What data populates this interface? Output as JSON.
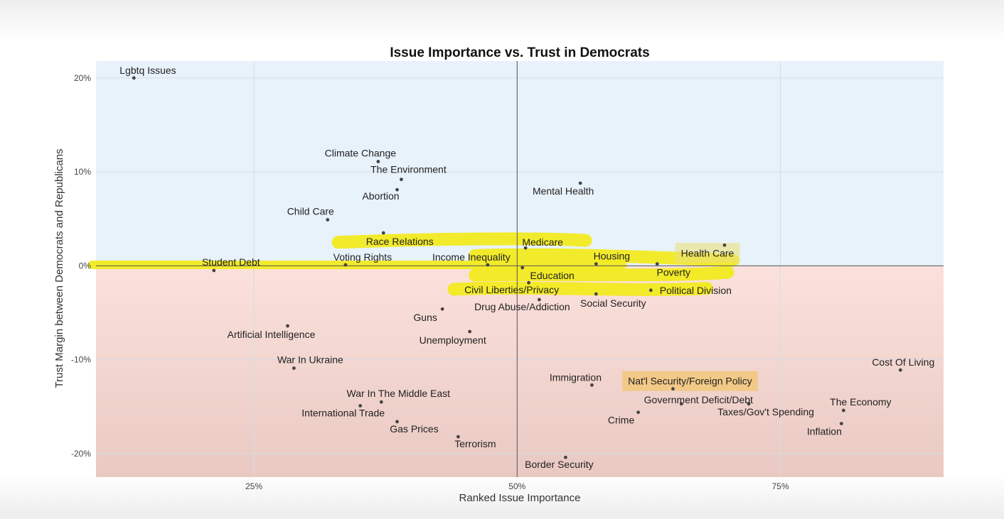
{
  "chart_data": {
    "type": "scatter",
    "title": "Issue Importance vs. Trust in Democrats",
    "xlabel": "Ranked Issue Importance",
    "ylabel": "Trust Margin between Democrats and Republicans",
    "xlim": [
      0.1,
      0.905
    ],
    "ylim": [
      -0.225,
      0.218
    ],
    "x_ticks": [
      0.25,
      0.5,
      0.75
    ],
    "x_tick_labels": [
      "25%",
      "50%",
      "75%"
    ],
    "y_ticks": [
      0.2,
      0.1,
      0.0,
      -0.1,
      -0.2
    ],
    "y_tick_labels": [
      "20%",
      "10%",
      "0%",
      "-10%",
      "-20%"
    ],
    "grid": true,
    "reference_lines": {
      "x": 0.5,
      "y": 0.0
    },
    "region_colors": {
      "positive": "#e8f2fb",
      "negative": "#fbe1dc",
      "negative_bottom": "#e9c9c2"
    },
    "point_color": "#444444",
    "highlight_color": "#f2ea1a",
    "highlight_box_color": "#f2c77a",
    "points": [
      {
        "label": "Lgbtq Issues",
        "x": 0.136,
        "y": 0.2
      },
      {
        "label": "Climate Change",
        "x": 0.368,
        "y": 0.111
      },
      {
        "label": "The Environment",
        "x": 0.39,
        "y": 0.092
      },
      {
        "label": "Abortion",
        "x": 0.386,
        "y": 0.081
      },
      {
        "label": "Mental Health",
        "x": 0.56,
        "y": 0.088
      },
      {
        "label": "Child Care",
        "x": 0.32,
        "y": 0.049
      },
      {
        "label": "Race Relations",
        "x": 0.373,
        "y": 0.035
      },
      {
        "label": "Medicare",
        "x": 0.508,
        "y": 0.019
      },
      {
        "label": "Health Care",
        "x": 0.697,
        "y": 0.022
      },
      {
        "label": "Student Debt",
        "x": 0.212,
        "y": -0.005
      },
      {
        "label": "Voting Rights",
        "x": 0.337,
        "y": 0.001
      },
      {
        "label": "Income Inequality",
        "x": 0.472,
        "y": 0.001
      },
      {
        "label": "Housing",
        "x": 0.575,
        "y": 0.002
      },
      {
        "label": "Education",
        "x": 0.505,
        "y": -0.002
      },
      {
        "label": "Poverty",
        "x": 0.633,
        "y": 0.002
      },
      {
        "label": "Civil Liberties/Privacy",
        "x": 0.511,
        "y": -0.018
      },
      {
        "label": "Political Division",
        "x": 0.627,
        "y": -0.026
      },
      {
        "label": "Social Security",
        "x": 0.575,
        "y": -0.03
      },
      {
        "label": "Drug Abuse/Addiction",
        "x": 0.521,
        "y": -0.036
      },
      {
        "label": "Guns",
        "x": 0.429,
        "y": -0.046
      },
      {
        "label": "Artificial Intelligence",
        "x": 0.282,
        "y": -0.064
      },
      {
        "label": "Unemployment",
        "x": 0.455,
        "y": -0.07
      },
      {
        "label": "War In Ukraine",
        "x": 0.288,
        "y": -0.109
      },
      {
        "label": "Cost Of Living",
        "x": 0.864,
        "y": -0.111
      },
      {
        "label": "Immigration",
        "x": 0.571,
        "y": -0.127
      },
      {
        "label": "Nat'l Security/Foreign Policy",
        "x": 0.648,
        "y": -0.131
      },
      {
        "label": "War In The Middle East",
        "x": 0.371,
        "y": -0.145
      },
      {
        "label": "Government Deficit/Debt",
        "x": 0.656,
        "y": -0.147
      },
      {
        "label": "International Trade",
        "x": 0.351,
        "y": -0.149
      },
      {
        "label": "The Economy",
        "x": 0.81,
        "y": -0.154
      },
      {
        "label": "Taxes/Gov't Spending",
        "x": 0.72,
        "y": -0.147
      },
      {
        "label": "Crime",
        "x": 0.615,
        "y": -0.156
      },
      {
        "label": "Gas Prices",
        "x": 0.386,
        "y": -0.166
      },
      {
        "label": "Inflation",
        "x": 0.808,
        "y": -0.168
      },
      {
        "label": "Terrorism",
        "x": 0.444,
        "y": -0.182
      },
      {
        "label": "Border Security",
        "x": 0.546,
        "y": -0.204
      }
    ],
    "highlighted_labels": [
      "Race Relations",
      "Medicare",
      "Health Care",
      "Student Debt",
      "Voting Rights",
      "Income Inequality",
      "Housing",
      "Education",
      "Poverty",
      "Civil Liberties/Privacy",
      "Political Division",
      "Social Security"
    ],
    "boxed_labels": [
      "Nat'l Security/Foreign Policy",
      "Health Care"
    ]
  }
}
